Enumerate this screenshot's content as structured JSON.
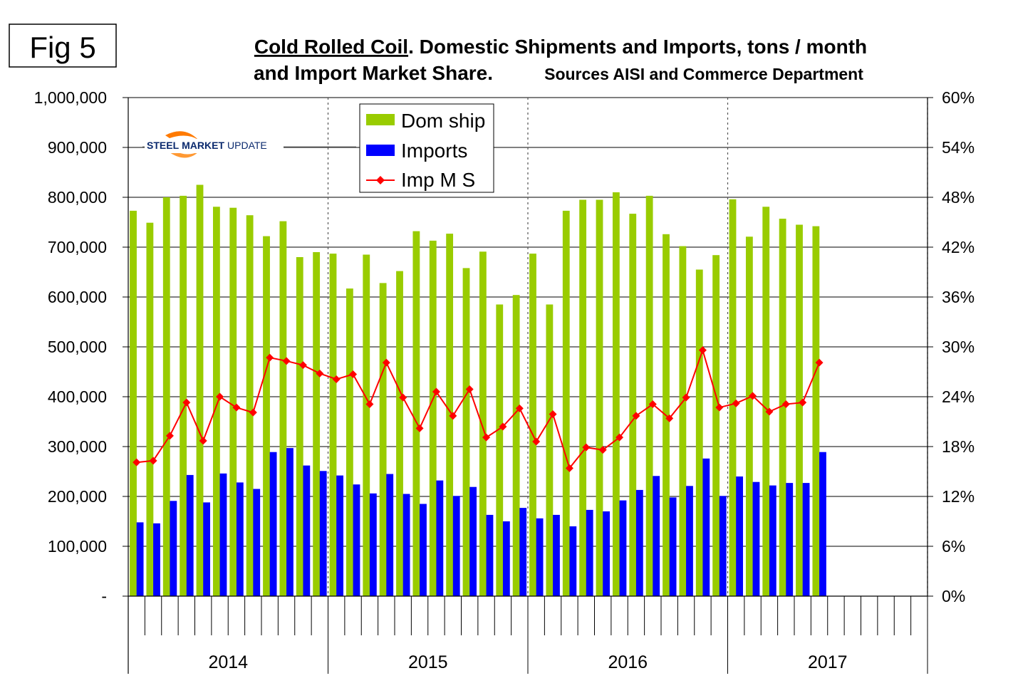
{
  "figure_label": "Fig 5",
  "title": {
    "underlined": "Cold Rolled Coil",
    "line1_rest": ". Domestic Shipments and Imports, tons / month",
    "line2": "and Import  Market Share.",
    "sources": "Sources AISI and Commerce Department"
  },
  "logo": {
    "word1": "STEEL",
    "word2": "MARKET",
    "word3": "UPDATE"
  },
  "colors": {
    "dom_ship": "#99cc00",
    "imports": "#0000ff",
    "imp_ms": "#ff0000"
  },
  "chart_data": {
    "type": "bar",
    "title": "Cold Rolled Coil. Domestic Shipments and Imports, tons / month and Import Market Share.",
    "xlabel": "",
    "ylabel": "",
    "ylim": [
      0,
      1000000
    ],
    "y2lim": [
      0,
      60
    ],
    "y_ticks": [
      0,
      100000,
      200000,
      300000,
      400000,
      500000,
      600000,
      700000,
      800000,
      900000,
      1000000
    ],
    "y_tick_labels": [
      "-",
      "100,000",
      "200,000",
      "300,000",
      "400,000",
      "500,000",
      "600,000",
      "700,000",
      "800,000",
      "900,000",
      "1,000,000"
    ],
    "y2_tick_labels": [
      "0%",
      "6%",
      "12%",
      "18%",
      "24%",
      "30%",
      "36%",
      "42%",
      "48%",
      "54%",
      "60%"
    ],
    "years": [
      "2014",
      "2015",
      "2016",
      "2017"
    ],
    "months_per_year": 12,
    "legend": [
      "Dom ship",
      "Imports",
      "Imp M S"
    ],
    "legend_position": "top-left",
    "series": [
      {
        "name": "Dom ship",
        "kind": "bar",
        "values": [
          773000,
          749000,
          800000,
          803000,
          825000,
          781000,
          779000,
          764000,
          722000,
          752000,
          680000,
          690000,
          687000,
          617000,
          685000,
          628000,
          652000,
          732000,
          713000,
          727000,
          658000,
          691000,
          585000,
          604000,
          687000,
          585000,
          773000,
          795000,
          795000,
          810000,
          767000,
          803000,
          726000,
          702000,
          655000,
          684000,
          796000,
          721000,
          781000,
          757000,
          745000,
          742000
        ]
      },
      {
        "name": "Imports",
        "kind": "bar",
        "values": [
          148000,
          146000,
          191000,
          243000,
          188000,
          246000,
          228000,
          215000,
          289000,
          297000,
          262000,
          251000,
          242000,
          224000,
          206000,
          245000,
          205000,
          185000,
          232000,
          201000,
          219000,
          163000,
          150000,
          177000,
          156000,
          163000,
          140000,
          173000,
          170000,
          192000,
          213000,
          241000,
          198000,
          221000,
          276000,
          201000,
          240000,
          229000,
          222000,
          227000,
          227000,
          289000
        ]
      },
      {
        "name": "Imp M S",
        "kind": "line",
        "axis": "right",
        "unit": "%",
        "values": [
          16.1,
          16.3,
          19.3,
          23.3,
          18.7,
          24.0,
          22.7,
          22.1,
          28.7,
          28.3,
          27.8,
          26.8,
          26.1,
          26.7,
          23.1,
          28.1,
          23.9,
          20.2,
          24.6,
          21.7,
          24.9,
          19.1,
          20.4,
          22.6,
          18.6,
          21.9,
          15.4,
          17.9,
          17.6,
          19.1,
          21.7,
          23.1,
          21.4,
          23.9,
          29.6,
          22.7,
          23.2,
          24.1,
          22.2,
          23.1,
          23.3,
          28.1
        ]
      }
    ]
  }
}
